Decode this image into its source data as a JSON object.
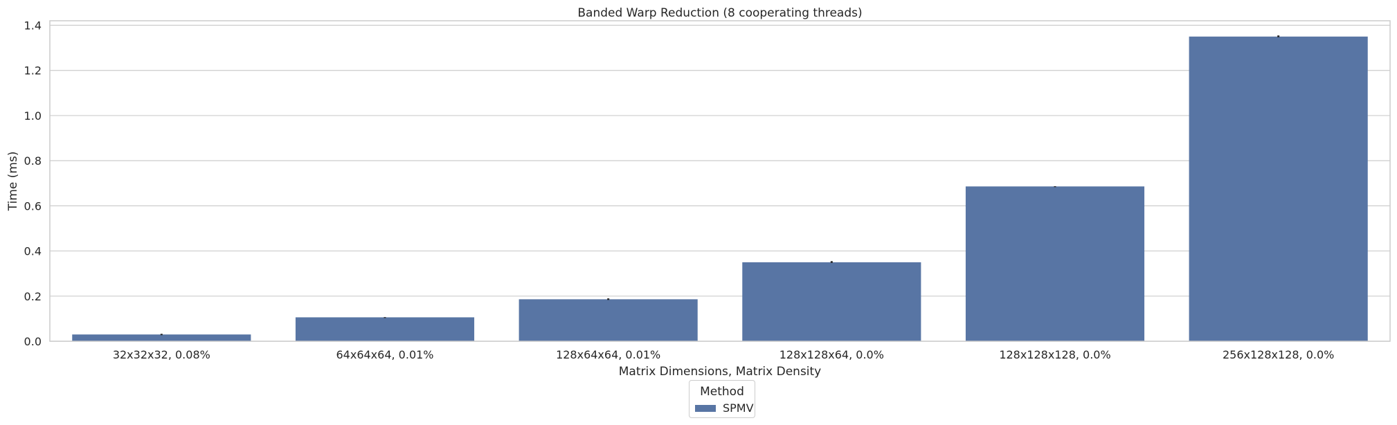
{
  "chart_data": {
    "type": "bar",
    "title": "Banded Warp Reduction (8 cooperating threads)",
    "xlabel": "Matrix Dimensions, Matrix Density",
    "ylabel": "Time (ms)",
    "categories": [
      "32x32x32, 0.08%",
      "64x64x64, 0.01%",
      "128x64x64, 0.01%",
      "128x128x64, 0.0%",
      "128x128x128, 0.0%",
      "256x128x128, 0.0%"
    ],
    "series": [
      {
        "name": "SPMV",
        "values": [
          0.03,
          0.106,
          0.186,
          0.35,
          0.686,
          1.35
        ],
        "error_high": [
          0.033,
          0.107,
          0.19,
          0.355,
          0.687,
          1.355
        ],
        "color": "#5875a4"
      }
    ],
    "ylim": [
      0,
      1.42
    ],
    "yticks": [
      0.0,
      0.2,
      0.4,
      0.6,
      0.8,
      1.0,
      1.2,
      1.4
    ],
    "ytick_labels": [
      "0.0",
      "0.2",
      "0.4",
      "0.6",
      "0.8",
      "1.0",
      "1.2",
      "1.4"
    ],
    "grid": "horizontal",
    "legend": {
      "title": "Method",
      "placement": "bottom-center"
    },
    "style": {
      "grid_color": "#cccccc",
      "axis_color": "#cccccc",
      "text_color": "#262626",
      "errorbar_color": "#262626",
      "background": "#ffffff"
    }
  }
}
